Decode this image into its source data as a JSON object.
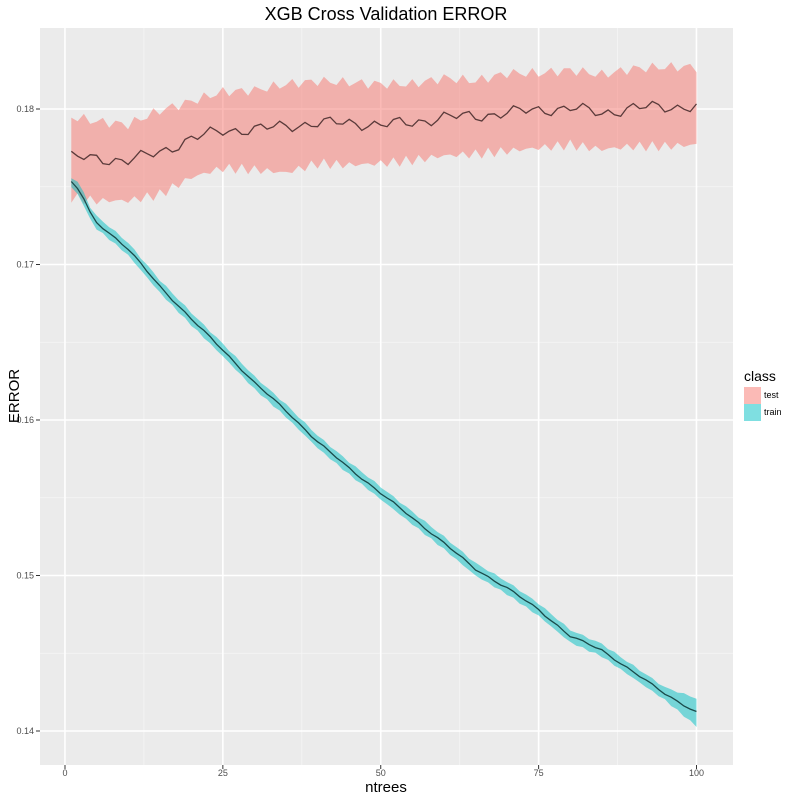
{
  "chart_data": {
    "type": "line",
    "title": "XGB Cross Validation ERROR",
    "xlabel": "ntrees",
    "ylabel": "ERROR",
    "xlim": [
      1,
      100
    ],
    "ylim": [
      0.14,
      0.18
    ],
    "x_ticks": [
      0,
      25,
      50,
      75,
      100
    ],
    "y_ticks": [
      0.14,
      0.15,
      0.16,
      0.17,
      0.18
    ],
    "x_tick_labels": [
      "0",
      "25",
      "50",
      "75",
      "100"
    ],
    "y_tick_labels": [
      "0.14",
      "0.15",
      "0.16",
      "0.17",
      "0.18"
    ],
    "grid": true,
    "legend": {
      "title": "class",
      "position": "right",
      "entries": [
        "test",
        "train"
      ]
    },
    "series": [
      {
        "name": "test",
        "color": "#F8766D",
        "line_color": "#5a3a3a",
        "points": [
          {
            "x": 1,
            "mean": 0.1769,
            "lower": 0.1743,
            "upper": 0.1795
          },
          {
            "x": 5,
            "mean": 0.1768,
            "lower": 0.1741,
            "upper": 0.1792
          },
          {
            "x": 10,
            "mean": 0.1767,
            "lower": 0.1741,
            "upper": 0.179
          },
          {
            "x": 15,
            "mean": 0.1772,
            "lower": 0.1745,
            "upper": 0.1799
          },
          {
            "x": 20,
            "mean": 0.1781,
            "lower": 0.1756,
            "upper": 0.1805
          },
          {
            "x": 25,
            "mean": 0.1786,
            "lower": 0.1762,
            "upper": 0.1811
          },
          {
            "x": 30,
            "mean": 0.1787,
            "lower": 0.1761,
            "upper": 0.1812
          },
          {
            "x": 35,
            "mean": 0.1789,
            "lower": 0.1759,
            "upper": 0.1816
          },
          {
            "x": 40,
            "mean": 0.1791,
            "lower": 0.1765,
            "upper": 0.1818
          },
          {
            "x": 45,
            "mean": 0.1791,
            "lower": 0.1764,
            "upper": 0.1817
          },
          {
            "x": 50,
            "mean": 0.179,
            "lower": 0.1765,
            "upper": 0.1816
          },
          {
            "x": 55,
            "mean": 0.1791,
            "lower": 0.1767,
            "upper": 0.1816
          },
          {
            "x": 60,
            "mean": 0.1795,
            "lower": 0.177,
            "upper": 0.182
          },
          {
            "x": 65,
            "mean": 0.1795,
            "lower": 0.1771,
            "upper": 0.1818
          },
          {
            "x": 70,
            "mean": 0.1798,
            "lower": 0.1773,
            "upper": 0.1823
          },
          {
            "x": 75,
            "mean": 0.1799,
            "lower": 0.1775,
            "upper": 0.1823
          },
          {
            "x": 80,
            "mean": 0.1801,
            "lower": 0.1777,
            "upper": 0.1825
          },
          {
            "x": 85,
            "mean": 0.1797,
            "lower": 0.1774,
            "upper": 0.1822
          },
          {
            "x": 90,
            "mean": 0.1801,
            "lower": 0.1776,
            "upper": 0.1826
          },
          {
            "x": 95,
            "mean": 0.1801,
            "lower": 0.1776,
            "upper": 0.1827
          },
          {
            "x": 100,
            "mean": 0.1802,
            "lower": 0.1777,
            "upper": 0.1827
          }
        ]
      },
      {
        "name": "train",
        "color": "#00BFC4",
        "line_color": "#1a4a4a",
        "points": [
          {
            "x": 1,
            "mean": 0.1753,
            "lower": 0.175,
            "upper": 0.1756
          },
          {
            "x": 2,
            "mean": 0.1749,
            "lower": 0.1745,
            "upper": 0.1753
          },
          {
            "x": 3,
            "mean": 0.1742,
            "lower": 0.1738,
            "upper": 0.1746
          },
          {
            "x": 4,
            "mean": 0.1733,
            "lower": 0.1729,
            "upper": 0.1737
          },
          {
            "x": 5,
            "mean": 0.1727,
            "lower": 0.1723,
            "upper": 0.1731
          },
          {
            "x": 8,
            "mean": 0.1717,
            "lower": 0.1713,
            "upper": 0.1721
          },
          {
            "x": 10,
            "mean": 0.171,
            "lower": 0.1706,
            "upper": 0.1714
          },
          {
            "x": 15,
            "mean": 0.1686,
            "lower": 0.1682,
            "upper": 0.169
          },
          {
            "x": 20,
            "mean": 0.1665,
            "lower": 0.1661,
            "upper": 0.1669
          },
          {
            "x": 25,
            "mean": 0.1645,
            "lower": 0.1641,
            "upper": 0.1649
          },
          {
            "x": 30,
            "mean": 0.1624,
            "lower": 0.162,
            "upper": 0.1628
          },
          {
            "x": 35,
            "mean": 0.1606,
            "lower": 0.1602,
            "upper": 0.161
          },
          {
            "x": 40,
            "mean": 0.1586,
            "lower": 0.1582,
            "upper": 0.159
          },
          {
            "x": 45,
            "mean": 0.1569,
            "lower": 0.1565,
            "upper": 0.1573
          },
          {
            "x": 50,
            "mean": 0.1553,
            "lower": 0.1549,
            "upper": 0.1557
          },
          {
            "x": 55,
            "mean": 0.1537,
            "lower": 0.1533,
            "upper": 0.1541
          },
          {
            "x": 60,
            "mean": 0.1521,
            "lower": 0.1517,
            "upper": 0.1525
          },
          {
            "x": 65,
            "mean": 0.1504,
            "lower": 0.15,
            "upper": 0.1508
          },
          {
            "x": 70,
            "mean": 0.1492,
            "lower": 0.1488,
            "upper": 0.1496
          },
          {
            "x": 75,
            "mean": 0.1478,
            "lower": 0.1474,
            "upper": 0.1482
          },
          {
            "x": 80,
            "mean": 0.1461,
            "lower": 0.1457,
            "upper": 0.1465
          },
          {
            "x": 85,
            "mean": 0.1452,
            "lower": 0.1448,
            "upper": 0.1456
          },
          {
            "x": 90,
            "mean": 0.1438,
            "lower": 0.1434,
            "upper": 0.1442
          },
          {
            "x": 95,
            "mean": 0.1424,
            "lower": 0.142,
            "upper": 0.1428
          },
          {
            "x": 100,
            "mean": 0.1412,
            "lower": 0.1403,
            "upper": 0.1421
          }
        ]
      }
    ]
  }
}
